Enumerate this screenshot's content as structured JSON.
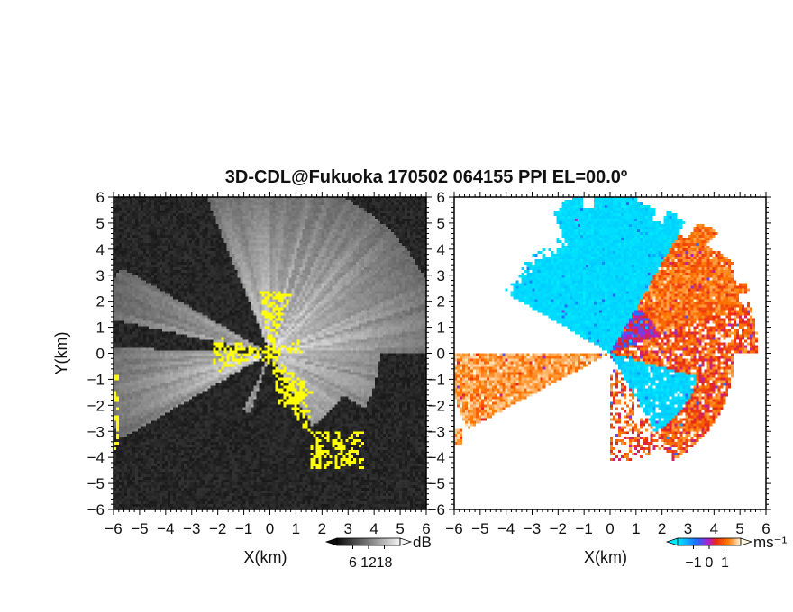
{
  "title": "3D-CDL@Fukuoka 170502 064155 PPI EL=00.0º",
  "colors": {
    "background": "#ffffff",
    "axis": "#000000",
    "snr_low": "#0c0c0c",
    "snr_high": "#f5f5f5",
    "mask": "#ffff00",
    "vel_neg_strong": "#00e5ff",
    "vel_neg_weak": "#1e6cff",
    "vel_pos_weak": "#ff6a00",
    "vel_pos_strong": "#fff8e0"
  },
  "chart_data": [
    {
      "type": "heatmap",
      "name": "snr-panel",
      "xlabel": "X(km)",
      "ylabel": "Y(km)",
      "xlim": [
        -6,
        6
      ],
      "ylim": [
        -6,
        6
      ],
      "xticks": [
        "−6",
        "−5",
        "−4",
        "−3",
        "−2",
        "−1",
        "0",
        "1",
        "2",
        "3",
        "4",
        "5",
        "6"
      ],
      "yticks": [
        "−6",
        "−5",
        "−4",
        "−3",
        "−2",
        "−1",
        "0",
        "1",
        "2",
        "3",
        "4",
        "5",
        "6"
      ],
      "colorbar": {
        "unit": "dB",
        "ticks": [
          "6",
          "12",
          "18"
        ],
        "tick_values": [
          6,
          12,
          18
        ],
        "range": [
          0,
          24
        ],
        "colormap": "gray",
        "extend": "both"
      }
    },
    {
      "type": "heatmap",
      "name": "velocity-panel",
      "xlabel": "X(km)",
      "ylabel": "",
      "xlim": [
        -6,
        6
      ],
      "ylim": [
        -6,
        6
      ],
      "xticks": [
        "−6",
        "−5",
        "−4",
        "−3",
        "−2",
        "−1",
        "0",
        "1",
        "2",
        "3",
        "4",
        "5",
        "6"
      ],
      "yticks": [
        "−6",
        "−5",
        "−4",
        "−3",
        "−2",
        "−1",
        "0",
        "1",
        "2",
        "3",
        "4",
        "5",
        "6"
      ],
      "colorbar": {
        "unit": "ms⁻¹",
        "ticks": [
          "−1",
          "0",
          "1"
        ],
        "tick_values": [
          -1,
          0,
          1
        ],
        "range": [
          -2,
          2
        ],
        "colormap": "cyan-blue-red-orange-white",
        "extend": "both"
      }
    }
  ]
}
